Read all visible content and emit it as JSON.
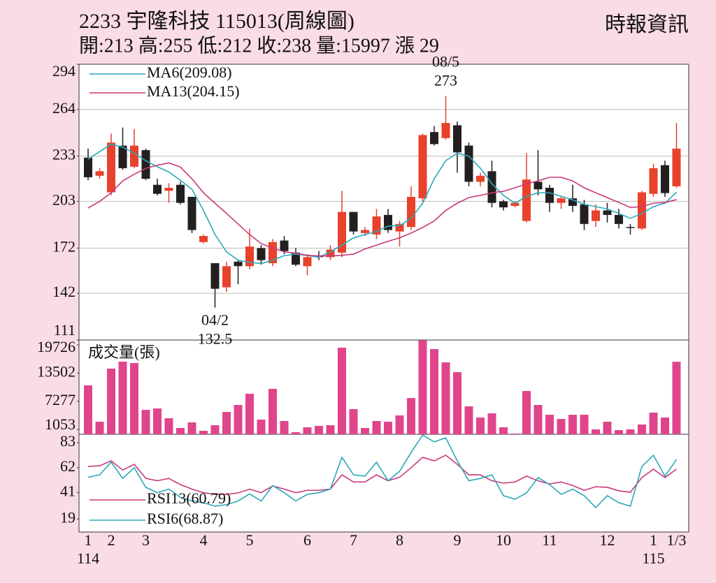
{
  "header": {
    "title": "2233  宇隆科技 115013(周線圖)",
    "quote": "開:213 高:255 低:212 收:238 量:15997 漲 29",
    "source": "時報資訊"
  },
  "chart_data": {
    "type": "candlestick",
    "categories": [
      "1",
      null,
      "2",
      null,
      null,
      "3",
      null,
      null,
      null,
      null,
      "4",
      null,
      null,
      null,
      "5",
      null,
      null,
      null,
      null,
      "6",
      null,
      null,
      null,
      "7",
      null,
      null,
      null,
      "8",
      null,
      null,
      null,
      null,
      "9",
      null,
      null,
      null,
      "10",
      null,
      null,
      null,
      "11",
      null,
      null,
      null,
      null,
      "12",
      null,
      null,
      null,
      "1",
      null,
      "1/3"
    ],
    "sub_categories": [
      "114",
      null,
      null,
      null,
      null,
      null,
      null,
      null,
      null,
      null,
      null,
      null,
      null,
      null,
      null,
      null,
      null,
      null,
      null,
      null,
      null,
      null,
      null,
      null,
      null,
      null,
      null,
      null,
      null,
      null,
      null,
      null,
      null,
      null,
      null,
      null,
      null,
      null,
      null,
      null,
      null,
      null,
      null,
      null,
      null,
      null,
      null,
      null,
      null,
      "115",
      null,
      null
    ],
    "open": [
      232,
      220,
      209,
      240,
      226,
      237,
      214,
      210,
      214,
      206,
      176,
      162,
      146,
      163,
      160,
      172,
      162,
      177,
      169,
      160,
      167,
      166,
      169,
      196,
      182,
      181,
      194,
      183,
      186,
      205,
      249,
      245,
      253.5,
      240,
      216,
      223,
      203,
      200,
      190,
      216,
      212,
      202,
      205,
      201,
      190,
      197,
      194,
      186,
      185,
      208,
      227,
      213
    ],
    "high": [
      238,
      225,
      248,
      252,
      251,
      238,
      218,
      215,
      216,
      206,
      181,
      162,
      163,
      164,
      185,
      174,
      178,
      180,
      172,
      168,
      170,
      174,
      210,
      196,
      186,
      198,
      198,
      190,
      213,
      248,
      253,
      273,
      256,
      242,
      222,
      230,
      204,
      203,
      235,
      237,
      214,
      206,
      214,
      204,
      201,
      202,
      198,
      188,
      210,
      228,
      230,
      255
    ],
    "low": [
      217,
      218,
      207,
      224,
      225,
      217,
      207,
      202,
      201,
      182,
      175,
      132.5,
      143,
      148,
      158,
      161,
      160,
      168,
      160,
      154,
      164,
      164,
      166,
      181,
      180,
      178,
      182,
      173,
      184,
      203,
      240,
      244,
      222,
      213,
      213,
      199,
      197,
      199,
      189,
      207,
      196,
      198,
      196,
      184,
      186,
      189,
      185,
      181,
      184,
      206,
      206,
      212
    ],
    "close": [
      219,
      223,
      242,
      225,
      240,
      218,
      208,
      212,
      202,
      184,
      180,
      145,
      160,
      160,
      173,
      164,
      176,
      170,
      161,
      166,
      166,
      171,
      196,
      183,
      184,
      193,
      184,
      188,
      206,
      247,
      241,
      255,
      235.5,
      216,
      220,
      202,
      199,
      202,
      217.5,
      211,
      202,
      205,
      200,
      188,
      197,
      194,
      188,
      185.5,
      209,
      225,
      208.5,
      238
    ],
    "up_color": "#e8412c",
    "down_color": "#231f20",
    "ylim": [
      111,
      294
    ],
    "yticks": [
      294,
      264,
      233,
      203,
      172,
      142,
      111
    ],
    "grid": true,
    "series": [
      {
        "name": "MA6(209.08)",
        "color": "#2aa9b8",
        "values": [
          231,
          236,
          241,
          239,
          235,
          230,
          226,
          222.5,
          217,
          211,
          197,
          181,
          169.5,
          164,
          162.6,
          161.7,
          164,
          167,
          168,
          167,
          166,
          169.5,
          174,
          178.8,
          181,
          183,
          186.6,
          187,
          191.7,
          201.8,
          218,
          230,
          235,
          233,
          225,
          214.7,
          207,
          201.8,
          206.4,
          208.7,
          208.7,
          206.4,
          204,
          201,
          199.5,
          198,
          195,
          191.7,
          195,
          199.5,
          201.8,
          209.08
        ]
      },
      {
        "name": "MA13(204.15)",
        "color": "#c8397a",
        "values": [
          198.6,
          203,
          208.7,
          216.6,
          221,
          224.9,
          227,
          228.5,
          225.8,
          218,
          208.7,
          201.8,
          195,
          188,
          181,
          175,
          172,
          169.5,
          168.6,
          167.2,
          166.8,
          166.8,
          167.2,
          168,
          171.4,
          174,
          176.5,
          178.8,
          182,
          185.7,
          190,
          197,
          201.8,
          205.5,
          207,
          208.7,
          209.7,
          212,
          214.7,
          216.6,
          219,
          219,
          216.6,
          212,
          208.7,
          205.5,
          202.3,
          199,
          199.5,
          201.8,
          202.3,
          204.15
        ]
      }
    ],
    "annotations": [
      {
        "date": "04/2",
        "value": 132.5
      },
      {
        "date": "08/5",
        "value": 273
      }
    ],
    "volume": {
      "type": "bar",
      "title": "成交量(張)",
      "color": "#e0458c",
      "ylim": [
        0,
        20800
      ],
      "yticks": [
        19726,
        13502,
        7277,
        1053
      ],
      "values": [
        10790,
        2770,
        14490,
        16030,
        15720,
        5390,
        5700,
        3540,
        1390,
        2620,
        770,
        2000,
        4930,
        6470,
        8940,
        3240,
        10020,
        2930,
        460,
        1540,
        1850,
        2000,
        19110,
        5550,
        1390,
        2930,
        2770,
        4160,
        8010,
        20700,
        18800,
        15870,
        13710,
        6160,
        3700,
        4620,
        1540,
        150,
        9550,
        6470,
        4310,
        3390,
        4310,
        4310,
        1080,
        2770,
        920,
        1080,
        2160,
        4780,
        3700,
        15997
      ]
    },
    "rsi": {
      "type": "line",
      "ylim": [
        8,
        90
      ],
      "yticks": [
        83,
        62,
        41,
        19
      ],
      "series": [
        {
          "name": "RSI13(60.79)",
          "color": "#c8397a",
          "values": [
            63,
            63.6,
            67.7,
            60,
            64.8,
            53,
            51,
            53,
            47.8,
            44,
            41,
            39.6,
            39.6,
            40.8,
            44,
            41,
            46.7,
            44,
            41,
            43,
            43,
            44,
            56,
            50,
            50,
            56,
            51,
            54,
            62,
            70.7,
            67.7,
            72.4,
            64.8,
            56,
            56,
            51,
            49,
            50,
            54.9,
            51,
            48.4,
            50,
            47,
            43,
            46,
            45.5,
            42.6,
            41.4,
            53.7,
            60.7,
            53.7,
            60.79
          ]
        },
        {
          "name": "RSI6(68.87)",
          "color": "#2aa9b8",
          "values": [
            54,
            56,
            66.6,
            53,
            62,
            45.5,
            41,
            44,
            37,
            34,
            32.6,
            29.7,
            31,
            34,
            40,
            34,
            47,
            41,
            34,
            39.6,
            41,
            44,
            70.7,
            56,
            54.9,
            66.6,
            51,
            59,
            74.8,
            89.4,
            83.6,
            87,
            67.7,
            51,
            53,
            56,
            38.5,
            35.5,
            40.8,
            53.7,
            47.8,
            39.6,
            44,
            38.5,
            28.5,
            38.5,
            32.6,
            29.7,
            63,
            72.4,
            54.9,
            68.87
          ]
        }
      ]
    }
  }
}
